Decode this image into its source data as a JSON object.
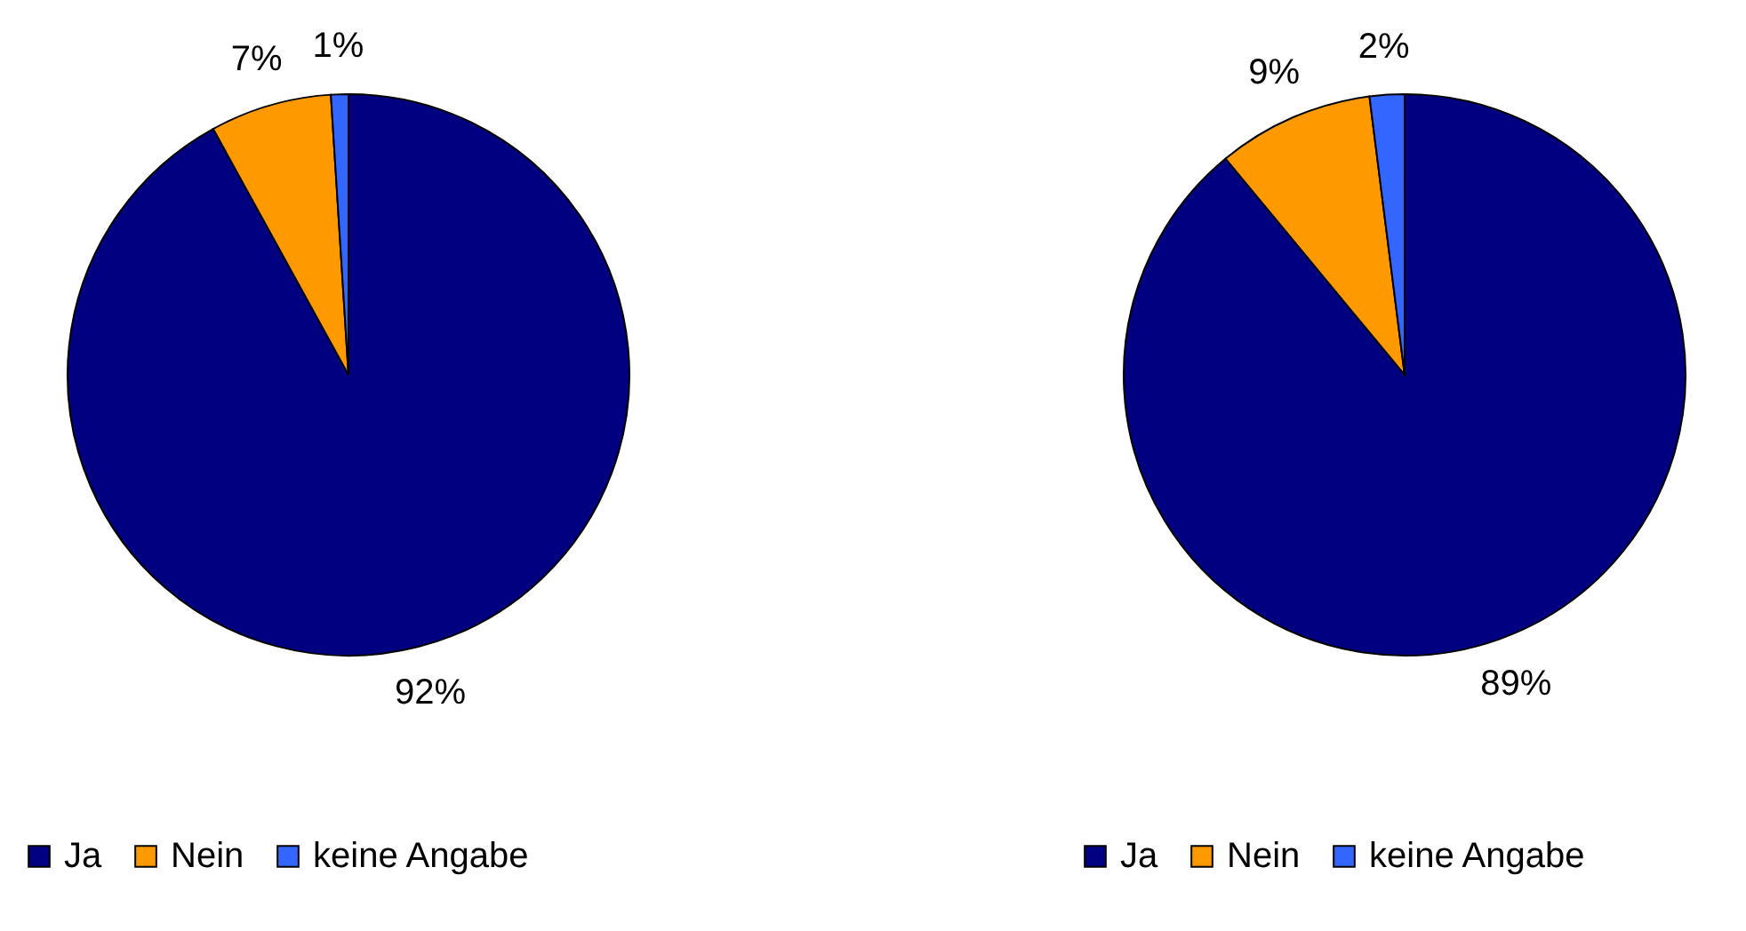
{
  "chart_data": [
    {
      "type": "pie",
      "categories": [
        "Ja",
        "Nein",
        "keine Angabe"
      ],
      "values": [
        92,
        7,
        1
      ],
      "value_labels": [
        "92%",
        "7%",
        "1%"
      ],
      "colors": [
        "#000080",
        "#ff9900",
        "#3366ff"
      ],
      "legend": "bottom"
    },
    {
      "type": "pie",
      "categories": [
        "Ja",
        "Nein",
        "keine Angabe"
      ],
      "values": [
        89,
        9,
        2
      ],
      "value_labels": [
        "89%",
        "9%",
        "2%"
      ],
      "colors": [
        "#000080",
        "#ff9900",
        "#3366ff"
      ],
      "legend": "bottom"
    }
  ]
}
